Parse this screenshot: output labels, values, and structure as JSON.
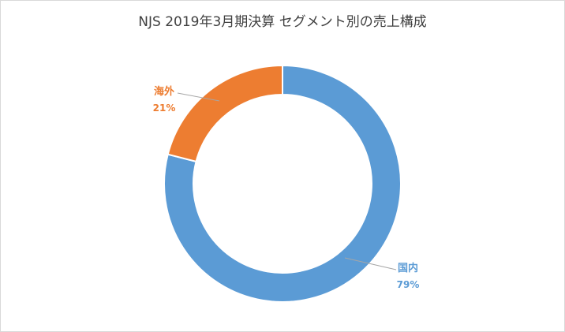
{
  "chart_data": {
    "type": "pie",
    "style": "doughnut",
    "title": "NJS 2019年3月期決算 セグメント別の売上構成",
    "categories": [
      "国内",
      "海外"
    ],
    "values": [
      79,
      21
    ],
    "data_labels": [
      "79%",
      "21%"
    ],
    "colors": [
      "#5B9BD5",
      "#ED7D31"
    ],
    "legend": "none"
  }
}
